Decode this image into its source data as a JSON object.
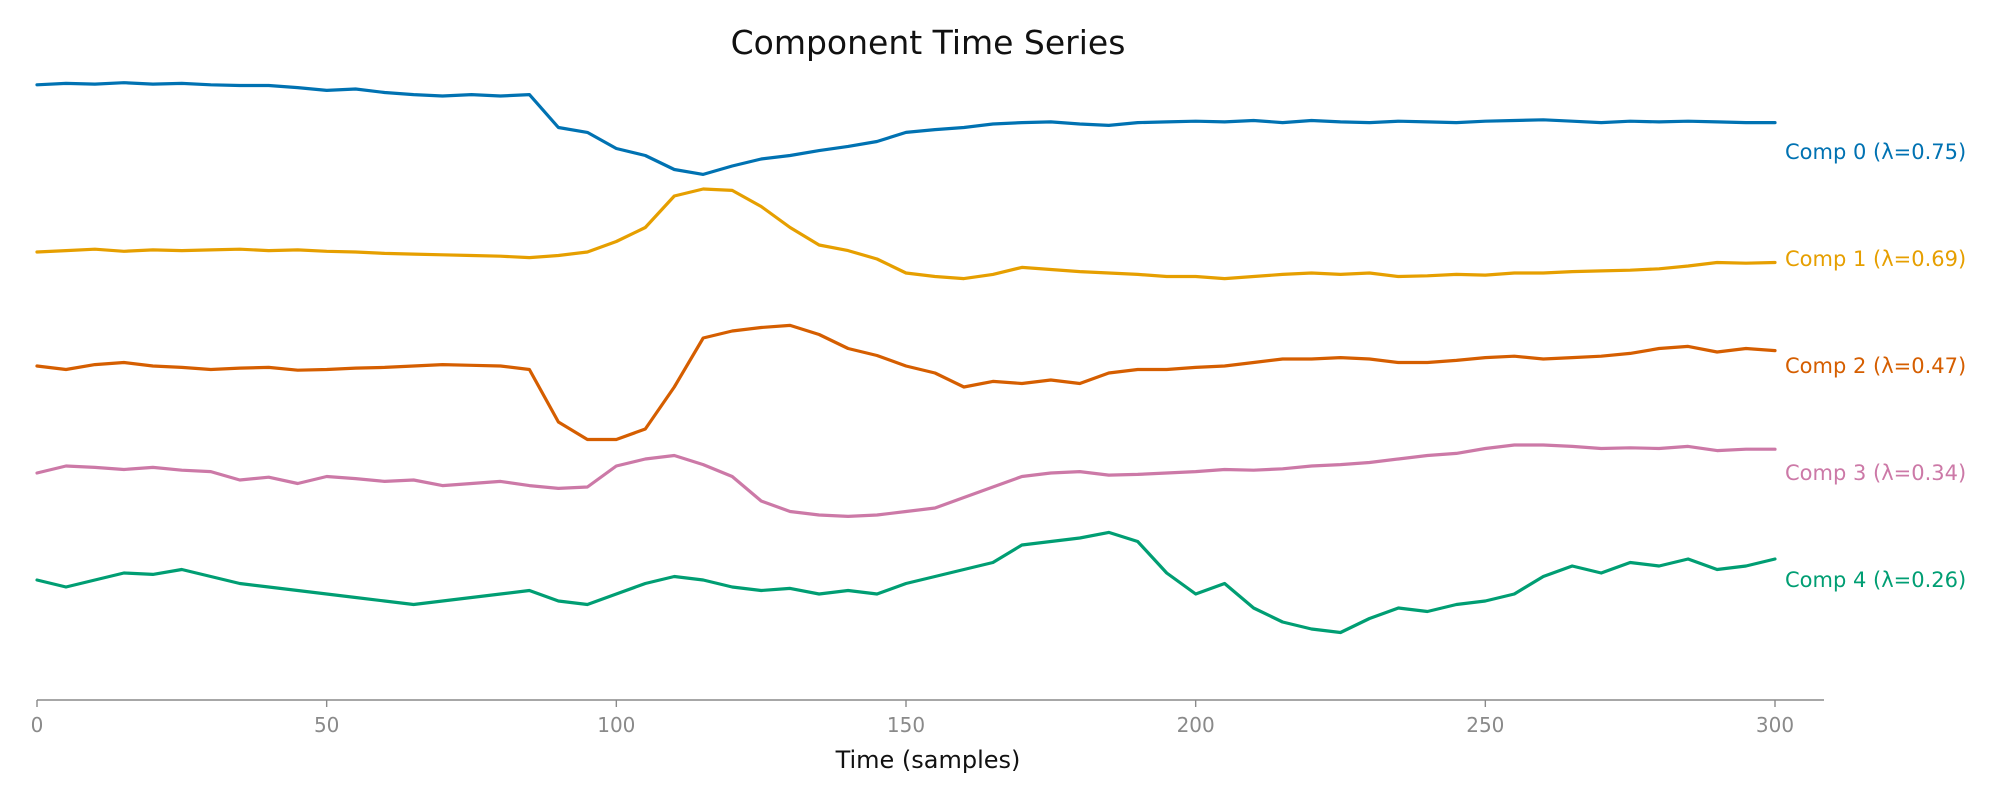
{
  "chart_data": {
    "type": "line",
    "title": "Component Time Series",
    "xlabel": "Time (samples)",
    "ylabel": "",
    "xlim": [
      0,
      310
    ],
    "x_ticks": [
      0,
      50,
      100,
      150,
      200,
      250,
      300
    ],
    "x_tick_labels": [
      "0",
      "50",
      "100",
      "150",
      "200",
      "250",
      "300"
    ],
    "y_axis_visible": false,
    "grid": false,
    "legend": "inline labels at right end of each series",
    "note_y_units": "values are normalized component amplitudes around each component's own baseline; components are vertically stacked",
    "x": [
      0,
      5,
      10,
      15,
      20,
      25,
      30,
      35,
      40,
      45,
      50,
      55,
      60,
      65,
      70,
      75,
      80,
      85,
      90,
      95,
      100,
      105,
      110,
      115,
      120,
      125,
      130,
      135,
      140,
      145,
      150,
      155,
      160,
      165,
      170,
      175,
      180,
      185,
      190,
      195,
      200,
      205,
      210,
      215,
      220,
      225,
      230,
      235,
      240,
      245,
      250,
      255,
      260,
      265,
      270,
      275,
      280,
      285,
      290,
      295,
      300
    ],
    "series": [
      {
        "name": "Comp 0 (λ=0.75)",
        "label": "Comp 0 (λ=0.75)",
        "color": "#0072B2",
        "offset": 4,
        "values": [
          0.96,
          0.98,
          0.97,
          0.99,
          0.97,
          0.98,
          0.96,
          0.95,
          0.95,
          0.92,
          0.88,
          0.9,
          0.85,
          0.82,
          0.8,
          0.82,
          0.8,
          0.82,
          0.35,
          0.28,
          0.05,
          -0.05,
          -0.25,
          -0.32,
          -0.2,
          -0.1,
          -0.05,
          0.02,
          0.08,
          0.15,
          0.28,
          0.32,
          0.35,
          0.4,
          0.42,
          0.43,
          0.4,
          0.38,
          0.42,
          0.43,
          0.44,
          0.43,
          0.45,
          0.42,
          0.45,
          0.43,
          0.42,
          0.44,
          0.43,
          0.42,
          0.44,
          0.45,
          0.46,
          0.44,
          0.42,
          0.44,
          0.43,
          0.44,
          0.43,
          0.42,
          0.42
        ]
      },
      {
        "name": "Comp 1 (λ=0.69)",
        "label": "Comp 1 (λ=0.69)",
        "color": "#E69F00",
        "offset": 3,
        "values": [
          0.1,
          0.12,
          0.14,
          0.11,
          0.13,
          0.12,
          0.13,
          0.14,
          0.12,
          0.13,
          0.11,
          0.1,
          0.08,
          0.07,
          0.06,
          0.05,
          0.04,
          0.02,
          0.05,
          0.1,
          0.25,
          0.45,
          0.9,
          1.0,
          0.98,
          0.75,
          0.45,
          0.2,
          0.12,
          0.0,
          -0.2,
          -0.25,
          -0.28,
          -0.22,
          -0.12,
          -0.15,
          -0.18,
          -0.2,
          -0.22,
          -0.25,
          -0.25,
          -0.28,
          -0.25,
          -0.22,
          -0.2,
          -0.22,
          -0.2,
          -0.25,
          -0.24,
          -0.22,
          -0.23,
          -0.2,
          -0.2,
          -0.18,
          -0.17,
          -0.16,
          -0.14,
          -0.1,
          -0.05,
          -0.06,
          -0.05
        ]
      },
      {
        "name": "Comp 2 (λ=0.47)",
        "label": "Comp 2 (λ=0.47)",
        "color": "#D55E00",
        "offset": 2,
        "values": [
          0.0,
          -0.05,
          0.02,
          0.05,
          0.0,
          -0.02,
          -0.05,
          -0.03,
          -0.02,
          -0.06,
          -0.05,
          -0.03,
          -0.02,
          0.0,
          0.02,
          0.01,
          0.0,
          -0.05,
          -0.8,
          -1.05,
          -1.05,
          -0.9,
          -0.3,
          0.4,
          0.5,
          0.55,
          0.58,
          0.45,
          0.25,
          0.15,
          0.0,
          -0.1,
          -0.3,
          -0.22,
          -0.25,
          -0.2,
          -0.25,
          -0.1,
          -0.05,
          -0.05,
          -0.02,
          0.0,
          0.05,
          0.1,
          0.1,
          0.12,
          0.1,
          0.05,
          0.05,
          0.08,
          0.12,
          0.14,
          0.1,
          0.12,
          0.14,
          0.18,
          0.25,
          0.28,
          0.2,
          0.25,
          0.22
        ]
      },
      {
        "name": "Comp 3 (λ=0.34)",
        "label": "Comp 3 (λ=0.34)",
        "color": "#CC79A7",
        "offset": 1,
        "values": [
          0.0,
          0.1,
          0.08,
          0.05,
          0.08,
          0.04,
          0.02,
          -0.1,
          -0.06,
          -0.15,
          -0.05,
          -0.08,
          -0.12,
          -0.1,
          -0.18,
          -0.15,
          -0.12,
          -0.18,
          -0.22,
          -0.2,
          0.1,
          0.2,
          0.25,
          0.12,
          -0.05,
          -0.4,
          -0.55,
          -0.6,
          -0.62,
          -0.6,
          -0.55,
          -0.5,
          -0.35,
          -0.2,
          -0.05,
          0.0,
          0.02,
          -0.03,
          -0.02,
          0.0,
          0.02,
          0.05,
          0.04,
          0.06,
          0.1,
          0.12,
          0.15,
          0.2,
          0.25,
          0.28,
          0.35,
          0.4,
          0.4,
          0.38,
          0.35,
          0.36,
          0.35,
          0.38,
          0.32,
          0.34,
          0.34
        ]
      },
      {
        "name": "Comp 4 (λ=0.26)",
        "label": "Comp 4 (λ=0.26)",
        "color": "#009E73",
        "offset": 0,
        "values": [
          0.0,
          -0.1,
          0.0,
          0.1,
          0.08,
          0.15,
          0.05,
          -0.05,
          -0.1,
          -0.15,
          -0.2,
          -0.25,
          -0.3,
          -0.35,
          -0.3,
          -0.25,
          -0.2,
          -0.15,
          -0.3,
          -0.35,
          -0.2,
          -0.05,
          0.05,
          0.0,
          -0.1,
          -0.15,
          -0.12,
          -0.2,
          -0.15,
          -0.2,
          -0.05,
          0.05,
          0.15,
          0.25,
          0.5,
          0.55,
          0.6,
          0.68,
          0.55,
          0.1,
          -0.2,
          -0.05,
          -0.4,
          -0.6,
          -0.7,
          -0.75,
          -0.55,
          -0.4,
          -0.45,
          -0.35,
          -0.3,
          -0.2,
          0.05,
          0.2,
          0.1,
          0.25,
          0.2,
          0.3,
          0.15,
          0.2,
          0.3
        ]
      }
    ]
  }
}
